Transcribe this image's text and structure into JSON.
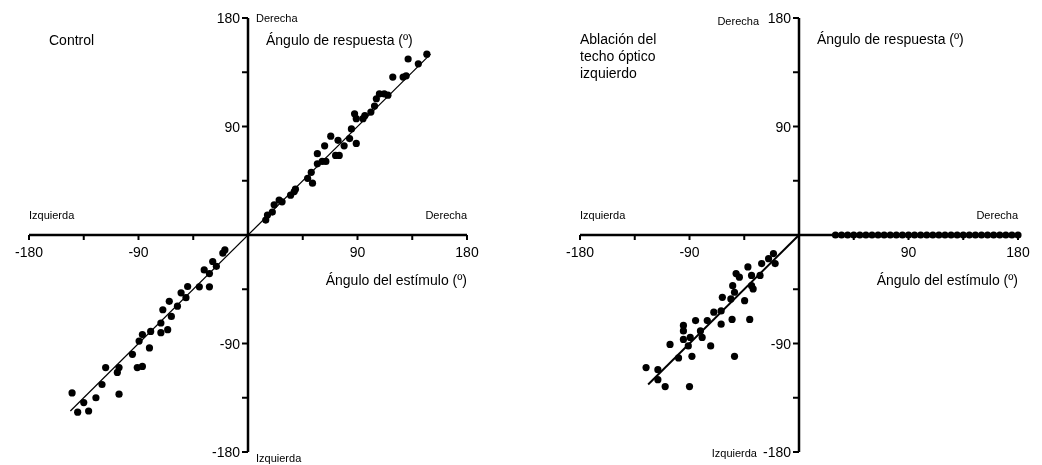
{
  "chart_data": [
    {
      "type": "scatter",
      "title": "Control",
      "xlabel": "Ángulo del estímulo (º)",
      "ylabel": "Ángulo de respuesta (º)",
      "annotations": [
        "Derecha",
        "Izquierda",
        "Izquierda",
        "Derecha"
      ],
      "xlim": [
        -180,
        180
      ],
      "ylim": [
        -180,
        180
      ],
      "xticks": [
        -180,
        {
          "value": -135,
          "label": null
        },
        -90,
        {
          "value": -45,
          "label": null
        },
        {
          "value": 45,
          "label": null
        },
        90,
        {
          "value": 135,
          "label": null
        },
        180
      ],
      "yticks": [
        -180,
        {
          "value": -135,
          "label": null
        },
        -90,
        {
          "value": -45,
          "label": null
        },
        {
          "value": 45,
          "label": null
        },
        90,
        {
          "value": 135,
          "label": null
        },
        180
      ],
      "marker": "circle",
      "grid": false,
      "series": [
        {
          "color": "#000000",
          "x": [
            14.6,
            16,
            20,
            21.5,
            25.6,
            28,
            35,
            38,
            39,
            49,
            53,
            52,
            57,
            57,
            61,
            64,
            63,
            68,
            72,
            75,
            74,
            79,
            83.5,
            85,
            89,
            87.6,
            89,
            94.5,
            96,
            101,
            104,
            105.5,
            108,
            112,
            115,
            119,
            127.5,
            130,
            131.6,
            140,
            147,
            -19,
            -20.7,
            -29,
            -26,
            -36,
            -31.7,
            -31.7,
            -40,
            -49.6,
            -55,
            -51,
            -64.7,
            -58,
            -70,
            -63,
            -71.6,
            -66,
            -71.6,
            -80,
            -86.8,
            -89.5,
            -81,
            -95,
            -86.8,
            -91,
            -106,
            -107.4,
            -117,
            -120,
            -106,
            -125,
            -144.6,
            -135,
            -140,
            -131
          ],
          "values": [
            12.4,
            16.5,
            19,
            25,
            29,
            27.5,
            33,
            36,
            38,
            47,
            43,
            52,
            59,
            67.5,
            61,
            61,
            74,
            82,
            66,
            66,
            78.5,
            74,
            80,
            88,
            76,
            100.5,
            96.5,
            96.5,
            99,
            102,
            107,
            113,
            117,
            117,
            116,
            131,
            131,
            132,
            146,
            142,
            150,
            -12.4,
            -15,
            -22,
            -26,
            -29,
            -32,
            -43,
            -43,
            -42.7,
            -48,
            -52,
            -55,
            -59,
            -62,
            -67.5,
            -73,
            -78.5,
            -81,
            -80,
            -82.6,
            -88,
            -93.7,
            -99,
            -109,
            -110,
            -110,
            -114,
            -110,
            -124,
            -132,
            -135,
            -131,
            -139,
            -147,
            -146
          ]
        },
        {
          "type": "line",
          "marker": "none",
          "color": "#000000",
          "x": [
            -146,
            150
          ],
          "values": [
            -146,
            150
          ]
        }
      ]
    },
    {
      "type": "scatter",
      "title": "Ablación del techo óptico izquierdo",
      "xlabel": "Ángulo del estímulo (º)",
      "ylabel": "Ángulo de respuesta (º)",
      "annotations": [
        "Derecha",
        "Izquierda",
        "Izquierda",
        "Derecha"
      ],
      "xlim": [
        -180,
        180
      ],
      "ylim": [
        -180,
        180
      ],
      "xticks": [
        -180,
        {
          "value": -135,
          "label": null
        },
        -90,
        {
          "value": -45,
          "label": null
        },
        {
          "value": 45,
          "label": null
        },
        90,
        {
          "value": 135,
          "label": null
        },
        180
      ],
      "yticks": [
        -180,
        {
          "value": -135,
          "label": null
        },
        -90,
        {
          "value": -45,
          "label": null
        },
        {
          "value": 45,
          "label": null
        },
        90,
        {
          "value": 135,
          "label": null
        },
        180
      ],
      "marker": "circle",
      "grid": false,
      "series": [
        {
          "color": "#000000",
          "x": [
            -21,
            -25,
            -19.6,
            -30.7,
            -42,
            -51.7,
            -49,
            -39,
            -32,
            -54.5,
            -39,
            -53,
            -37.7,
            -63,
            -56,
            -44.7,
            -70,
            -64,
            -64,
            -55,
            -40.5,
            -75.4,
            -85,
            -95,
            -95,
            -81,
            -95,
            -89.4,
            -79.6,
            -106,
            -91,
            -72.6,
            -99,
            -88,
            -53,
            -125.7,
            -116,
            -116,
            -110,
            -90,
            30,
            35,
            40,
            45,
            50,
            55,
            60,
            65,
            70,
            75,
            80,
            85,
            90,
            95,
            100,
            105,
            110,
            115,
            120,
            125,
            130,
            135,
            140,
            145,
            150,
            155,
            160,
            165,
            170,
            175,
            180
          ],
          "values": [
            -15.4,
            -19.6,
            -23.7,
            -23.7,
            -26.5,
            -32,
            -35,
            -33.5,
            -33.5,
            -42,
            -42,
            -47.5,
            -44.7,
            -51.7,
            -53,
            -54.5,
            -64,
            -63,
            -74,
            -70,
            -70,
            -71,
            -71,
            -75,
            -79.6,
            -79.6,
            -86.6,
            -85,
            -85,
            -90.8,
            -92,
            -92,
            -102,
            -100.6,
            -100.6,
            -110,
            -111.7,
            -120,
            -125.7,
            -125.7,
            0,
            0,
            0,
            0,
            0,
            0,
            0,
            0,
            0,
            0,
            0,
            0,
            0,
            0,
            0,
            0,
            0,
            0,
            0,
            0,
            0,
            0,
            0,
            0,
            0,
            0,
            0,
            0,
            0,
            0,
            0
          ]
        },
        {
          "type": "line",
          "marker": "none",
          "color": "#000000",
          "x": [
            -124,
            0
          ],
          "values": [
            -124,
            0
          ]
        }
      ]
    }
  ]
}
